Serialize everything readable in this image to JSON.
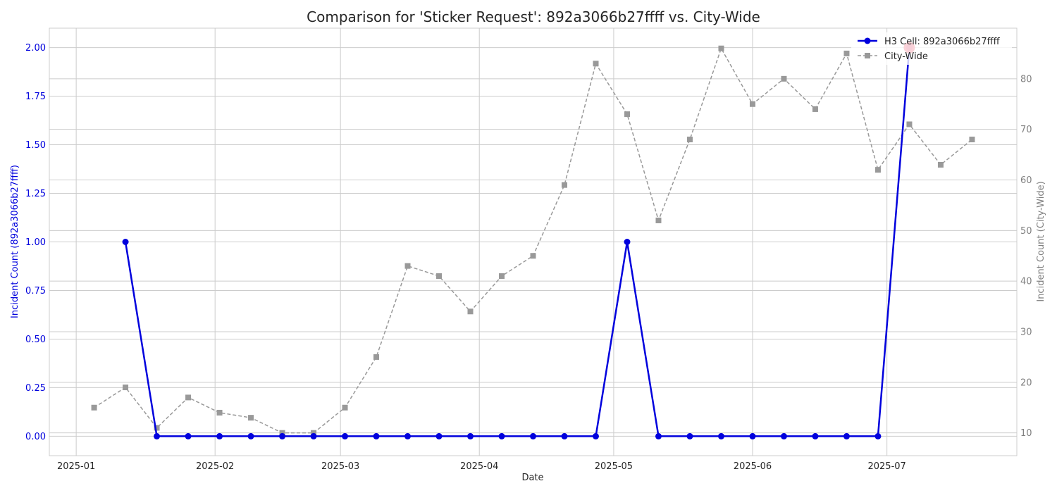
{
  "chart_data": {
    "type": "line",
    "title": "Comparison for 'Sticker Request': 892a3066b27ffff vs. City-Wide",
    "xlabel": "Date",
    "ylabel_left": "Incident Count (892a3066b27ffff)",
    "ylabel_right": "Incident Count (City-Wide)",
    "x_ticks": [
      "2025-01-01",
      "2025-02-01",
      "2025-03-01",
      "2025-04-01",
      "2025-05-01",
      "2025-06-01",
      "2025-07-01"
    ],
    "x_tick_labels": [
      "2025-01",
      "2025-02",
      "2025-03",
      "2025-04",
      "2025-05",
      "2025-06",
      "2025-07"
    ],
    "xlim": [
      "2024-12-26",
      "2025-07-30"
    ],
    "ylim_left": [
      -0.1,
      2.1
    ],
    "ylim_right": [
      5.5,
      90
    ],
    "y_ticks_left": [
      0.0,
      0.25,
      0.5,
      0.75,
      1.0,
      1.25,
      1.5,
      1.75,
      2.0
    ],
    "y_tick_labels_left": [
      "0.00",
      "0.25",
      "0.50",
      "0.75",
      "1.00",
      "1.25",
      "1.50",
      "1.75",
      "2.00"
    ],
    "y_ticks_right": [
      10,
      20,
      30,
      40,
      50,
      60,
      70,
      80
    ],
    "y_tick_labels_right": [
      "10",
      "20",
      "30",
      "40",
      "50",
      "60",
      "70",
      "80"
    ],
    "grid": true,
    "legend_position": "top-right",
    "series": [
      {
        "name": "H3 Cell: 892a3066b27ffff",
        "axis": "left",
        "color": "#0000dd",
        "style": "solid",
        "marker": "circle",
        "x": [
          "2025-01-12",
          "2025-01-19",
          "2025-01-26",
          "2025-02-02",
          "2025-02-09",
          "2025-02-16",
          "2025-02-23",
          "2025-03-02",
          "2025-03-09",
          "2025-03-16",
          "2025-03-23",
          "2025-03-30",
          "2025-04-06",
          "2025-04-13",
          "2025-04-20",
          "2025-04-27",
          "2025-05-04",
          "2025-05-11",
          "2025-05-18",
          "2025-05-25",
          "2025-06-01",
          "2025-06-08",
          "2025-06-15",
          "2025-06-22",
          "2025-06-29",
          "2025-07-06"
        ],
        "y": [
          1,
          0,
          0,
          0,
          0,
          0,
          0,
          0,
          0,
          0,
          0,
          0,
          0,
          0,
          0,
          0,
          1,
          0,
          0,
          0,
          0,
          0,
          0,
          0,
          0,
          2
        ]
      },
      {
        "name": "City-Wide",
        "axis": "right",
        "color": "#999999",
        "style": "dashed",
        "marker": "square",
        "x": [
          "2025-01-05",
          "2025-01-12",
          "2025-01-19",
          "2025-01-26",
          "2025-02-02",
          "2025-02-09",
          "2025-02-16",
          "2025-02-23",
          "2025-03-02",
          "2025-03-09",
          "2025-03-16",
          "2025-03-23",
          "2025-03-30",
          "2025-04-06",
          "2025-04-13",
          "2025-04-20",
          "2025-04-27",
          "2025-05-04",
          "2025-05-11",
          "2025-05-18",
          "2025-05-25",
          "2025-06-01",
          "2025-06-08",
          "2025-06-15",
          "2025-06-22",
          "2025-06-29",
          "2025-07-06",
          "2025-07-13",
          "2025-07-20"
        ],
        "y": [
          15,
          19,
          11,
          17,
          14,
          13,
          10,
          10,
          15,
          25,
          43,
          41,
          34,
          41,
          45,
          59,
          83,
          73,
          52,
          68,
          86,
          75,
          80,
          74,
          85,
          62,
          71,
          63,
          68
        ]
      }
    ],
    "highlight": {
      "x": "2025-07-06",
      "y": 2,
      "axis": "left",
      "color": "#e8102a"
    }
  }
}
